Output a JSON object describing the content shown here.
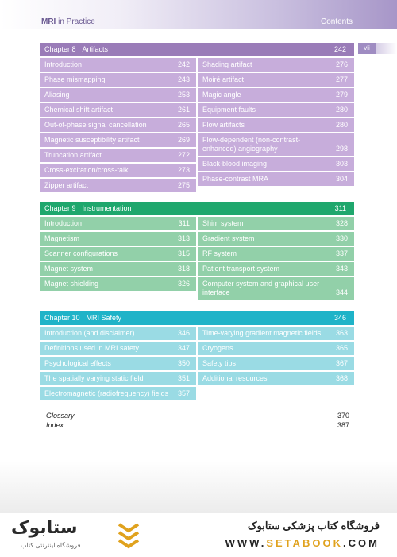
{
  "header": {
    "book_title_part1": "MRI",
    "book_title_part2": "in Practice",
    "section": "Contents",
    "page_number": "vii"
  },
  "chapters": [
    {
      "label": "Chapter 8",
      "title": "Artifacts",
      "page": "242",
      "left": [
        {
          "t": "Introduction",
          "p": "242"
        },
        {
          "t": "Phase mismapping",
          "p": "243"
        },
        {
          "t": "Aliasing",
          "p": "253"
        },
        {
          "t": "Chemical shift artifact",
          "p": "261"
        },
        {
          "t": "Out-of-phase signal cancellation",
          "p": "265"
        },
        {
          "t": "Magnetic susceptibility artifact",
          "p": "269"
        },
        {
          "t": "Truncation artifact",
          "p": "272"
        },
        {
          "t": "Cross-excitation/cross-talk",
          "p": "273"
        },
        {
          "t": "Zipper artifact",
          "p": "275"
        }
      ],
      "right": [
        {
          "t": "Shading artifact",
          "p": "276"
        },
        {
          "t": "Moiré artifact",
          "p": "277"
        },
        {
          "t": "Magic angle",
          "p": "279"
        },
        {
          "t": "Equipment faults",
          "p": "280"
        },
        {
          "t": "Flow artifacts",
          "p": "280"
        },
        {
          "t": "Flow-dependent (non-contrast-enhanced) angiography",
          "p": "298"
        },
        {
          "t": "Black-blood imaging",
          "p": "303"
        },
        {
          "t": "Phase-contrast MRA",
          "p": "304"
        }
      ]
    },
    {
      "label": "Chapter 9",
      "title": "Instrumentation",
      "page": "311",
      "left": [
        {
          "t": "Introduction",
          "p": "311"
        },
        {
          "t": "Magnetism",
          "p": "313"
        },
        {
          "t": "Scanner configurations",
          "p": "315"
        },
        {
          "t": "Magnet system",
          "p": "318"
        },
        {
          "t": "Magnet shielding",
          "p": "326"
        }
      ],
      "right": [
        {
          "t": "Shim system",
          "p": "328"
        },
        {
          "t": "Gradient system",
          "p": "330"
        },
        {
          "t": "RF system",
          "p": "337"
        },
        {
          "t": "Patient transport system",
          "p": "343"
        },
        {
          "t": "Computer system and graphical user interface",
          "p": "344"
        }
      ]
    },
    {
      "label": "Chapter 10",
      "title": "MRI Safety",
      "page": "346",
      "left": [
        {
          "t": "Introduction (and disclaimer)",
          "p": "346"
        },
        {
          "t": "Definitions used in MRI safety",
          "p": "347"
        },
        {
          "t": "Psychological effects",
          "p": "350"
        },
        {
          "t": "The spatially varying static field",
          "p": "351"
        },
        {
          "t": "Electromagnetic (radiofrequency) fields",
          "p": "357"
        }
      ],
      "right": [
        {
          "t": "Time-varying gradient magnetic fields",
          "p": "363"
        },
        {
          "t": "Cryogens",
          "p": "365"
        },
        {
          "t": "Safety tips",
          "p": "367"
        },
        {
          "t": "Additional resources",
          "p": "368"
        }
      ]
    }
  ],
  "back_matter": [
    {
      "t": "Glossary",
      "p": "370"
    },
    {
      "t": "Index",
      "p": "387"
    }
  ],
  "banner": {
    "logo_text": "ستابوک",
    "logo_subtitle": "فروشگاه اینترنتی کتاب",
    "shop_name": "فروشگاه کتاب پزشکی ستابوک",
    "url_prefix": "WWW.",
    "url_highlight": "SETABOOK",
    "url_suffix": ".COM"
  }
}
